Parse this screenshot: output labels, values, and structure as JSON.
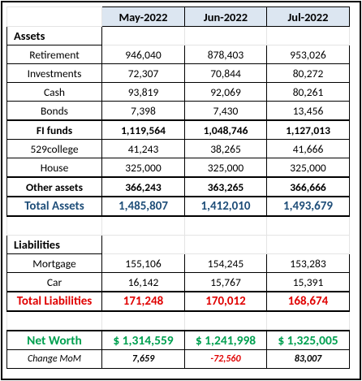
{
  "header": {
    "columns": [
      "May-2022",
      "Jun-2022",
      "Jul-2022"
    ]
  },
  "assets": {
    "title": "Assets",
    "rows": [
      {
        "label": "Retirement",
        "values": [
          "946,040",
          "878,403",
          "953,026"
        ]
      },
      {
        "label": "Investments",
        "values": [
          "72,307",
          "70,844",
          "80,272"
        ]
      },
      {
        "label": "Cash",
        "values": [
          "93,819",
          "92,069",
          "80,261"
        ]
      },
      {
        "label": "Bonds",
        "values": [
          "7,398",
          "7,430",
          "13,456"
        ]
      },
      {
        "label": "FI funds",
        "values": [
          "1,119,564",
          "1,048,746",
          "1,127,013"
        ]
      },
      {
        "label": "529college",
        "values": [
          "41,243",
          "38,265",
          "41,666"
        ]
      },
      {
        "label": "House",
        "values": [
          "325,000",
          "325,000",
          "325,000"
        ]
      },
      {
        "label": "Other assets",
        "values": [
          "366,243",
          "363,265",
          "366,666"
        ]
      },
      {
        "label": "Total Assets",
        "values": [
          "1,485,807",
          "1,412,010",
          "1,493,679"
        ]
      }
    ]
  },
  "liabilities": {
    "title": "Liabilities",
    "rows": [
      {
        "label": "Mortgage",
        "values": [
          "155,106",
          "154,245",
          "153,283"
        ]
      },
      {
        "label": "Car",
        "values": [
          "16,142",
          "15,767",
          "15,391"
        ]
      },
      {
        "label": "Total Liabilities",
        "values": [
          "171,248",
          "170,012",
          "168,674"
        ]
      }
    ]
  },
  "net_worth": {
    "label": "Net Worth",
    "values": [
      "$ 1,314,559",
      "$ 1,241,998",
      "$ 1,325,005"
    ]
  },
  "change": {
    "label": "Change MoM",
    "values": [
      "7,659",
      "-72,560",
      "83,007"
    ]
  }
}
